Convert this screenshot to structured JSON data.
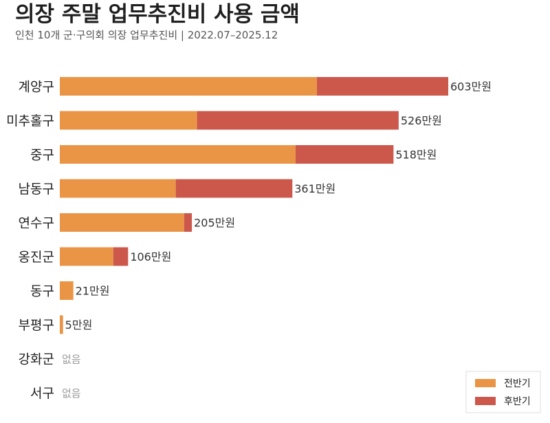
{
  "chart_data": {
    "type": "bar",
    "orientation": "horizontal",
    "stacked": true,
    "title": "의장 주말 업무추진비 사용 금액",
    "subtitle": "인천 10개 군·구의회 의장 업무추진비 | 2022.07–2025.12",
    "unit_suffix": "만원",
    "none_text": "없음",
    "categories": [
      "계양구",
      "미추홀구",
      "중구",
      "남동구",
      "연수구",
      "옹진군",
      "동구",
      "부평구",
      "강화군",
      "서구"
    ],
    "series": [
      {
        "name": "전반기",
        "color": "#EA9445",
        "values": [
          399,
          213,
          366,
          180,
          193,
          83,
          21,
          5,
          0,
          0
        ]
      },
      {
        "name": "후반기",
        "color": "#CC574B",
        "values": [
          204,
          313,
          152,
          181,
          12,
          23,
          0,
          0,
          0,
          0
        ]
      }
    ],
    "totals": [
      603,
      526,
      518,
      361,
      205,
      106,
      21,
      5,
      0,
      0
    ],
    "xlim": [
      0,
      603
    ],
    "grid": false,
    "legend_position": "bottom-right"
  }
}
